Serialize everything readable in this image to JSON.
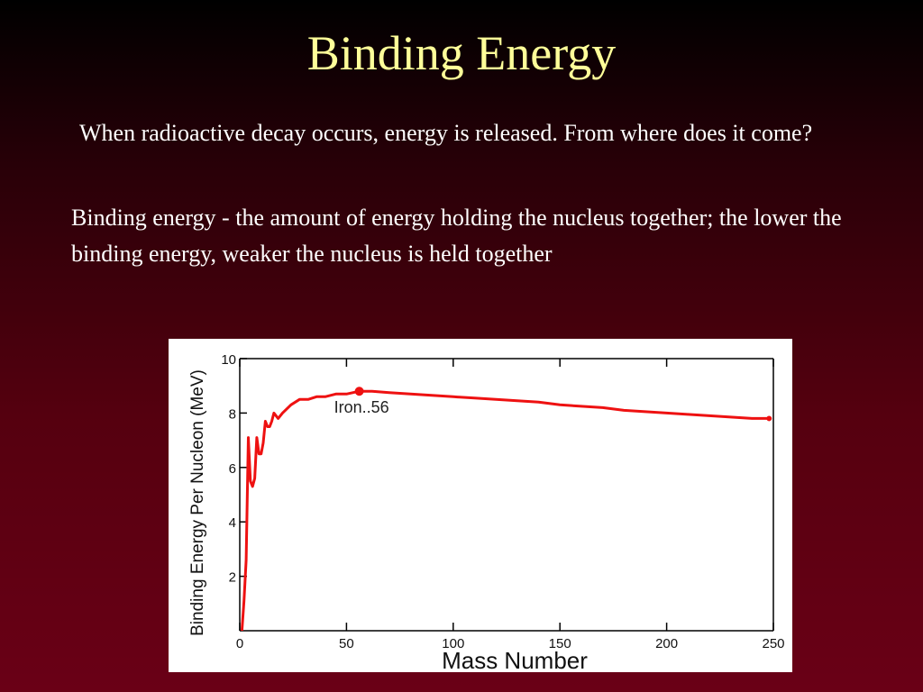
{
  "slide": {
    "title": "Binding Energy",
    "paragraph1": "When radioactive decay occurs, energy is released.  From where does it come?",
    "paragraph2": "Binding energy - the amount of energy holding the nucleus together; the lower the binding energy, weaker the nucleus is held together"
  },
  "colors": {
    "title": "#ffff99",
    "text": "#ffffff",
    "curve": "#ee1111",
    "axis": "#000000"
  },
  "chart_data": {
    "type": "line",
    "title": "",
    "xlabel": "Mass Number",
    "ylabel": "Binding Energy Per Nucleon (MeV)",
    "xlim": [
      0,
      250
    ],
    "ylim": [
      0,
      10
    ],
    "xticks": [
      0,
      50,
      100,
      150,
      200,
      250
    ],
    "yticks": [
      2,
      4,
      6,
      8,
      10
    ],
    "grid": false,
    "series": [
      {
        "x": [
          1,
          2,
          3,
          4,
          5,
          6,
          7,
          8,
          9,
          10,
          11,
          12,
          13,
          14,
          15,
          16,
          18,
          20,
          24,
          28,
          32,
          36,
          40,
          45,
          50,
          56,
          62,
          70,
          80,
          90,
          100,
          110,
          120,
          130,
          140,
          150,
          160,
          170,
          180,
          190,
          200,
          210,
          220,
          230,
          240,
          248
        ],
        "y": [
          0.0,
          1.1,
          2.6,
          7.1,
          5.5,
          5.3,
          5.6,
          7.1,
          6.5,
          6.5,
          6.9,
          7.7,
          7.5,
          7.5,
          7.7,
          8.0,
          7.8,
          8.0,
          8.3,
          8.5,
          8.5,
          8.6,
          8.6,
          8.7,
          8.7,
          8.8,
          8.8,
          8.75,
          8.7,
          8.65,
          8.6,
          8.55,
          8.5,
          8.45,
          8.4,
          8.3,
          8.25,
          8.2,
          8.1,
          8.05,
          8.0,
          7.95,
          7.9,
          7.85,
          7.8,
          7.8
        ]
      }
    ],
    "annotations": [
      {
        "text": "Iron..56",
        "x": 56,
        "y": 8.8
      }
    ]
  }
}
